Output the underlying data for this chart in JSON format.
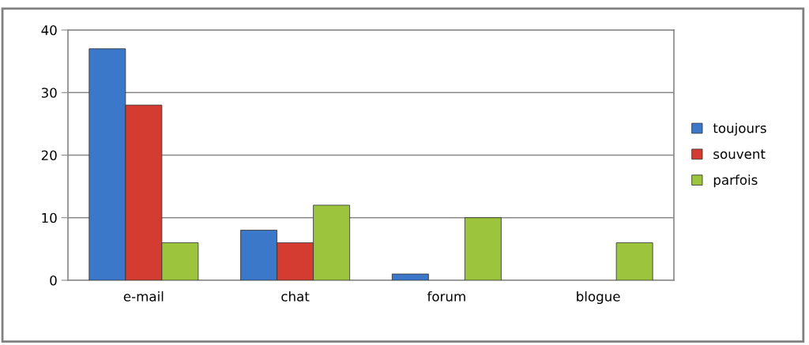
{
  "chart_data": {
    "type": "bar",
    "categories": [
      "e-mail",
      "chat",
      "forum",
      "blogue"
    ],
    "series": [
      {
        "name": "toujours",
        "color": "#3b78c9",
        "values": [
          37,
          8,
          1,
          null
        ]
      },
      {
        "name": "souvent",
        "color": "#d43b31",
        "values": [
          28,
          6,
          null,
          null
        ]
      },
      {
        "name": "parfois",
        "color": "#9cc53d",
        "values": [
          6,
          12,
          10,
          6
        ]
      }
    ],
    "ylim": [
      0,
      40
    ],
    "yticks": [
      0,
      10,
      20,
      30,
      40
    ],
    "grid": "y",
    "legend": "right"
  }
}
